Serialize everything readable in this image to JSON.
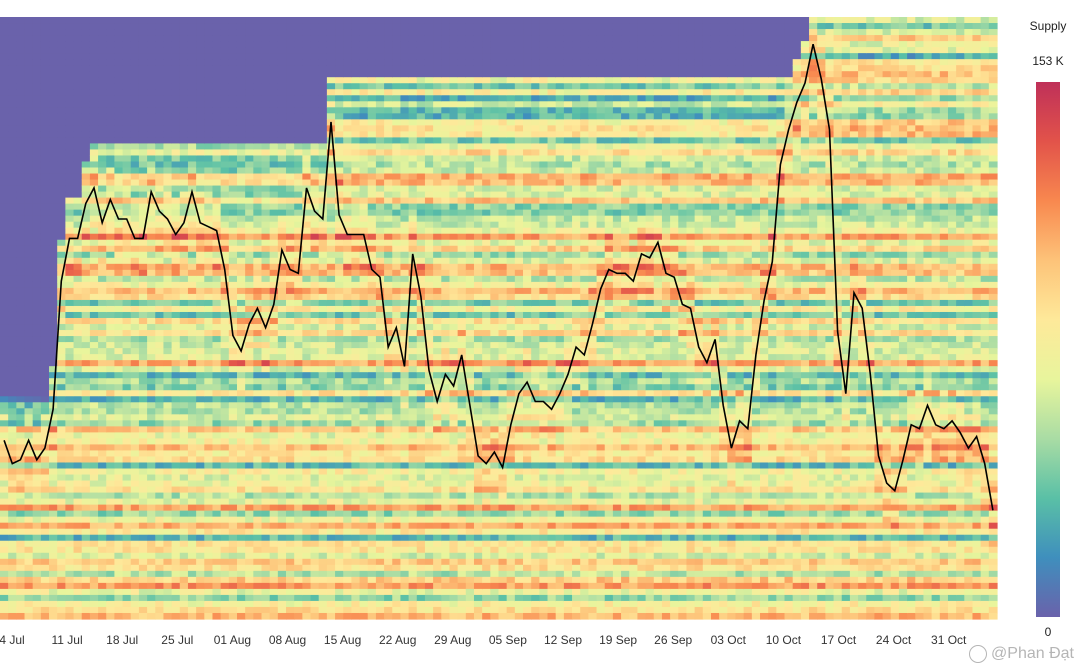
{
  "chart_data": {
    "type": "heatmap",
    "title": "",
    "x_tick_labels": [
      "4 Jul",
      "11 Jul",
      "18 Jul",
      "25 Jul",
      "01 Aug",
      "08 Aug",
      "15 Aug",
      "22 Aug",
      "29 Aug",
      "05 Sep",
      "12 Sep",
      "19 Sep",
      "26 Sep",
      "03 Oct",
      "10 Oct",
      "17 Oct",
      "24 Oct",
      "31 Oct"
    ],
    "legend": {
      "title": "Supply",
      "max_label": "153 K",
      "min_label": "0",
      "max_value": 153000,
      "min_value": 0
    },
    "colorscale": [
      "#6a62ab",
      "#3f8fbd",
      "#5ac0a6",
      "#a9dca4",
      "#e8f59c",
      "#fee99a",
      "#fdc379",
      "#f8884f",
      "#e2534a",
      "#bf3059"
    ],
    "price_line": {
      "color": "#000000",
      "values": [
        0.86,
        0.8,
        0.81,
        0.86,
        0.81,
        0.84,
        0.94,
        1.27,
        1.38,
        1.38,
        1.47,
        1.51,
        1.42,
        1.48,
        1.43,
        1.43,
        1.38,
        1.38,
        1.5,
        1.45,
        1.43,
        1.39,
        1.42,
        1.5,
        1.42,
        1.41,
        1.4,
        1.3,
        1.13,
        1.09,
        1.16,
        1.2,
        1.15,
        1.21,
        1.35,
        1.3,
        1.29,
        1.51,
        1.45,
        1.43,
        1.68,
        1.44,
        1.39,
        1.39,
        1.39,
        1.3,
        1.28,
        1.1,
        1.15,
        1.05,
        1.34,
        1.23,
        1.04,
        0.96,
        1.03,
        1.0,
        1.08,
        0.95,
        0.82,
        0.8,
        0.83,
        0.79,
        0.9,
        0.98,
        1.01,
        0.96,
        0.96,
        0.94,
        0.98,
        1.03,
        1.1,
        1.08,
        1.16,
        1.25,
        1.3,
        1.29,
        1.29,
        1.27,
        1.34,
        1.33,
        1.37,
        1.29,
        1.28,
        1.21,
        1.2,
        1.1,
        1.06,
        1.12,
        0.95,
        0.84,
        0.91,
        0.89,
        1.08,
        1.22,
        1.32,
        1.57,
        1.66,
        1.73,
        1.78,
        1.88,
        1.79,
        1.66,
        1.14,
        0.98,
        1.24,
        1.2,
        1.03,
        0.82,
        0.75,
        0.73,
        0.81,
        0.9,
        0.89,
        0.95,
        0.9,
        0.89,
        0.91,
        0.88,
        0.84,
        0.87,
        0.8,
        0.68
      ],
      "y_min": 0.4,
      "y_max": 1.95
    },
    "watermark_text": "@Phan Đạt"
  }
}
